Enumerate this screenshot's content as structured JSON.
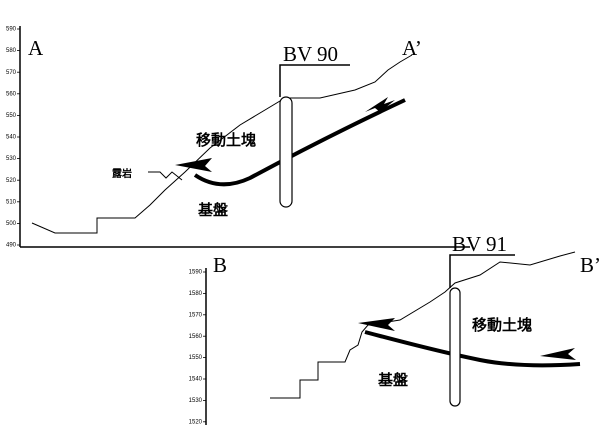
{
  "section_a": {
    "label_left": "A",
    "label_right": "A’",
    "borehole": "BV 90",
    "moving_mass": "移動土塊",
    "bedrock": "基盤",
    "outcrop": "露岩",
    "axis_ticks": [
      "590",
      "580",
      "570",
      "560",
      "550",
      "540",
      "530",
      "520",
      "510",
      "500",
      "490"
    ]
  },
  "section_b": {
    "label_left": "B",
    "label_right": "B’",
    "borehole": "BV 91",
    "moving_mass": "移動土塊",
    "bedrock": "基盤",
    "axis_ticks": [
      "1590",
      "1580",
      "1570",
      "1560",
      "1550",
      "1540",
      "1530",
      "1520"
    ]
  }
}
